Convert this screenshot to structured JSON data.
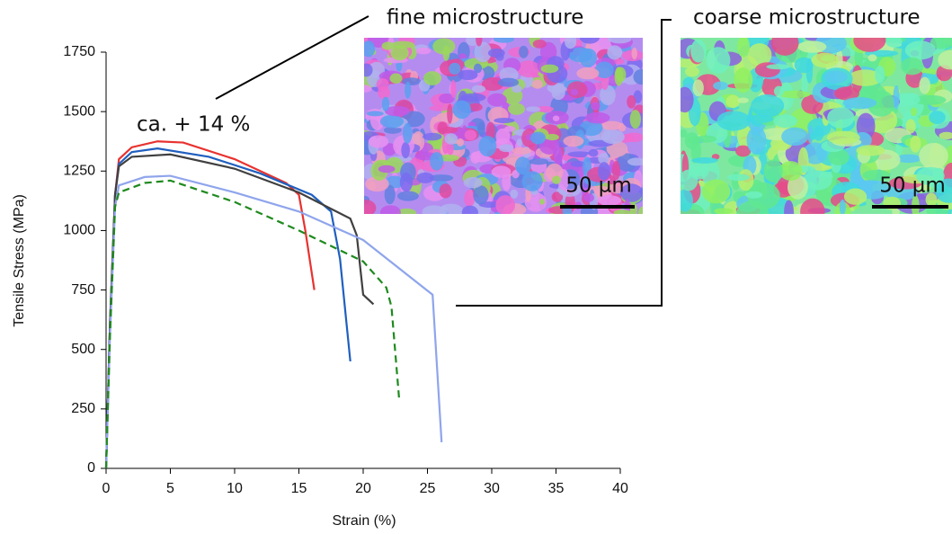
{
  "chart_data": {
    "type": "line",
    "xlabel": "Strain (%)",
    "ylabel": "Tensile Stress (MPa)",
    "xlim": [
      0,
      40
    ],
    "xticks": [
      0,
      5,
      10,
      15,
      20,
      25,
      30,
      35,
      40
    ],
    "ylim": [
      0,
      1750
    ],
    "yticks": [
      0,
      250,
      500,
      750,
      1000,
      1250,
      1500,
      1750
    ],
    "annotations": [
      "ca. + 14 %",
      "fine microstructure",
      "coarse microstructure",
      "50 µm",
      "50 µm"
    ],
    "series": [
      {
        "color": "#e8322f",
        "dashed": false,
        "x": [
          0,
          0.3,
          0.7,
          1,
          2,
          4,
          6,
          10,
          14,
          15,
          15.5,
          16.2
        ],
        "values": [
          0,
          600,
          1150,
          1300,
          1350,
          1375,
          1370,
          1300,
          1200,
          1150,
          1000,
          750
        ]
      },
      {
        "color": "#1f5fbf",
        "dashed": false,
        "x": [
          0,
          0.3,
          0.7,
          1,
          2,
          4,
          8,
          12,
          16,
          17.5,
          18.2,
          19
        ],
        "values": [
          0,
          600,
          1150,
          1280,
          1330,
          1345,
          1310,
          1240,
          1150,
          1080,
          880,
          450
        ]
      },
      {
        "color": "#404040",
        "dashed": false,
        "x": [
          0,
          0.3,
          0.7,
          1,
          2,
          5,
          10,
          15,
          19,
          19.5,
          20,
          20.8
        ],
        "values": [
          0,
          600,
          1150,
          1270,
          1310,
          1320,
          1260,
          1160,
          1050,
          980,
          730,
          690
        ]
      },
      {
        "color": "#8fa5ec",
        "dashed": false,
        "x": [
          0,
          0.3,
          0.7,
          1,
          3,
          5,
          10,
          15,
          20,
          25.4,
          26.1
        ],
        "values": [
          0,
          550,
          1100,
          1190,
          1225,
          1230,
          1160,
          1080,
          960,
          730,
          110
        ]
      },
      {
        "color": "#1e8a1e",
        "dashed": true,
        "x": [
          0,
          0.3,
          0.7,
          1,
          3,
          5,
          10,
          15,
          20,
          21.8,
          22.2,
          22.8
        ],
        "values": [
          0,
          550,
          1100,
          1160,
          1200,
          1210,
          1120,
          1000,
          870,
          760,
          680,
          290
        ]
      }
    ]
  }
}
